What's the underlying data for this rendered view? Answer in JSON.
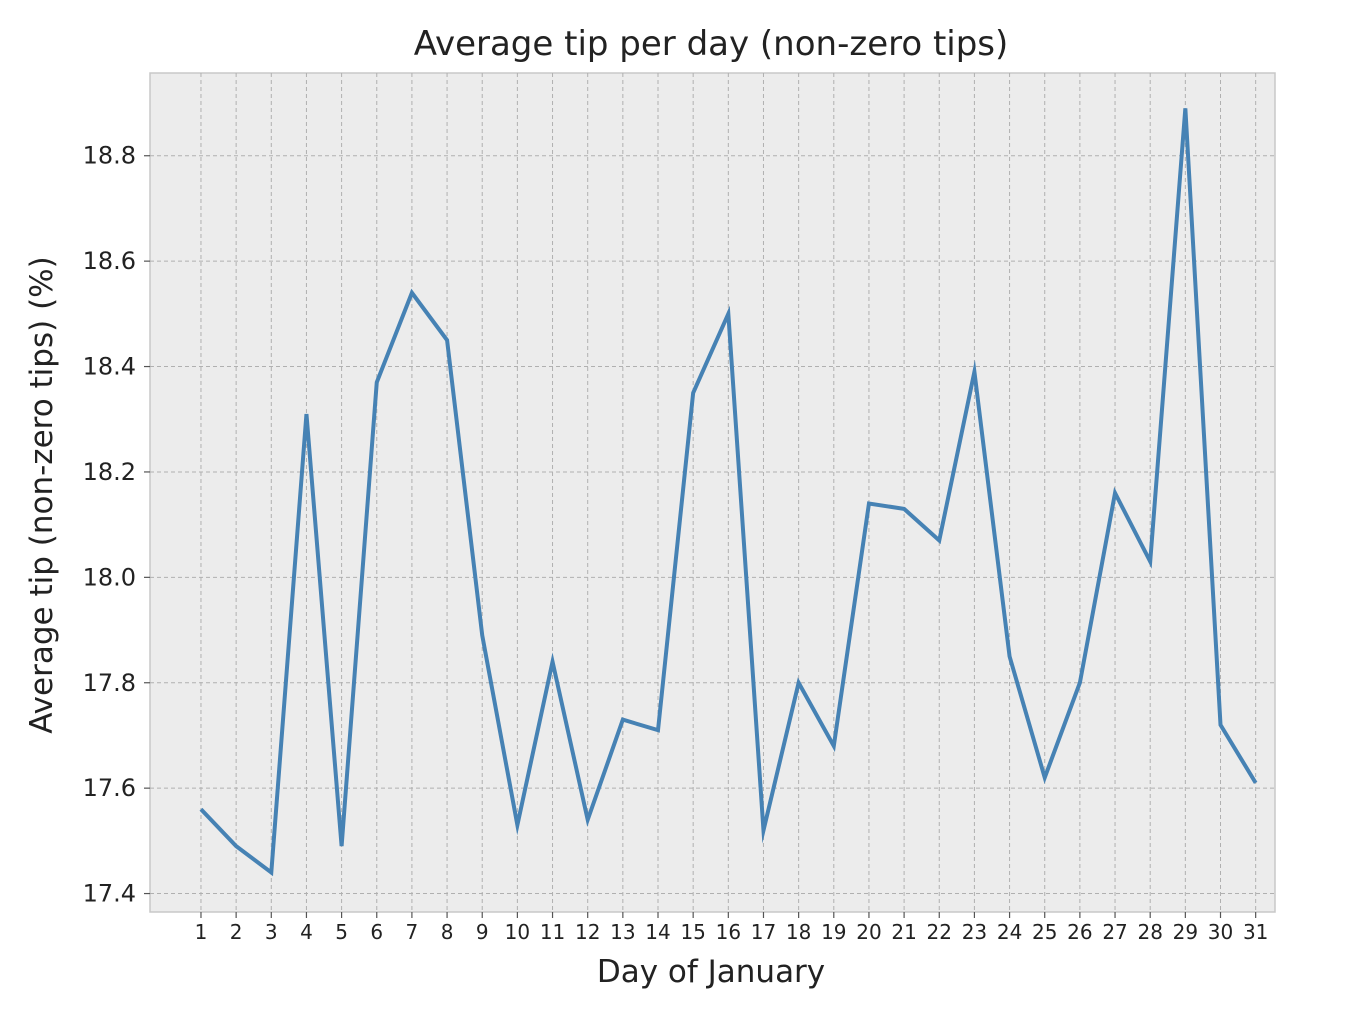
{
  "chart_data": {
    "type": "line",
    "title": "Average tip per day (non-zero tips)",
    "xlabel": "Day of January",
    "ylabel": "Average tip (non-zero tips) (%)",
    "x": [
      1,
      2,
      3,
      4,
      5,
      6,
      7,
      8,
      9,
      10,
      11,
      12,
      13,
      14,
      15,
      16,
      17,
      18,
      19,
      20,
      21,
      22,
      23,
      24,
      25,
      26,
      27,
      28,
      29,
      30,
      31
    ],
    "series": [
      {
        "values": [
          17.56,
          17.49,
          17.44,
          18.31,
          17.49,
          18.37,
          18.54,
          18.45,
          17.89,
          17.53,
          17.84,
          17.54,
          17.73,
          17.71,
          18.35,
          18.5,
          17.52,
          17.8,
          17.68,
          18.14,
          18.13,
          18.07,
          18.39,
          17.85,
          17.62,
          17.8,
          18.16,
          18.03,
          18.89,
          17.72,
          17.61
        ],
        "color": "#4682b4"
      }
    ],
    "xlim": [
      -0.45,
      31.55
    ],
    "ylim": [
      17.365,
      18.957
    ],
    "yticks": [
      "17.4",
      "17.6",
      "17.8",
      "18.0",
      "18.2",
      "18.4",
      "18.6",
      "18.8"
    ],
    "xticks": [
      "1",
      "2",
      "3",
      "4",
      "5",
      "6",
      "7",
      "8",
      "9",
      "10",
      "11",
      "12",
      "13",
      "14",
      "15",
      "16",
      "17",
      "18",
      "19",
      "20",
      "21",
      "22",
      "23",
      "24",
      "25",
      "26",
      "27",
      "28",
      "29",
      "30",
      "31"
    ],
    "grid": true,
    "background_color": "#ececec",
    "legend": "none"
  }
}
